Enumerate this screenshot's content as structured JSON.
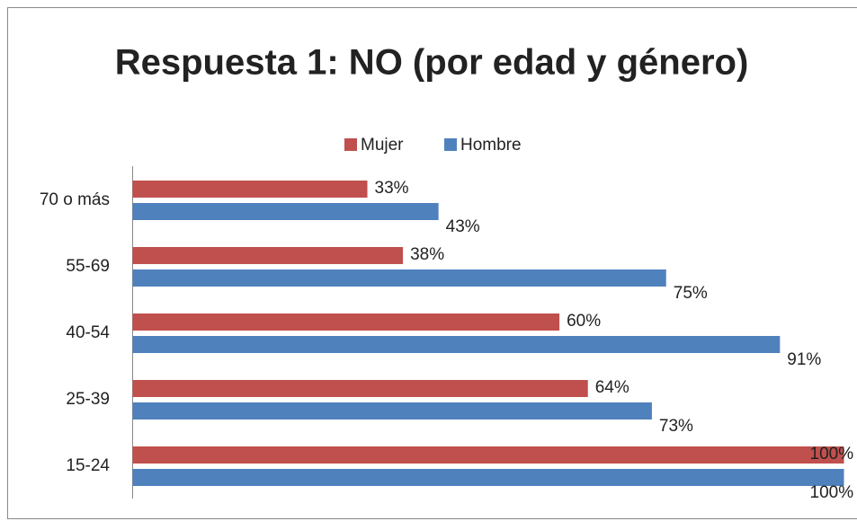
{
  "chart_data": {
    "type": "bar",
    "orientation": "horizontal",
    "title": "Respuesta 1: NO (por edad y género)",
    "categories": [
      "70 o más",
      "55-69",
      "40-54",
      "25-39",
      "15-24"
    ],
    "series": [
      {
        "name": "Mujer",
        "color": "#c0504d",
        "values": [
          33,
          38,
          60,
          64,
          100
        ],
        "value_labels": [
          "33%",
          "38%",
          "60%",
          "64%",
          "100%"
        ]
      },
      {
        "name": "Hombre",
        "color": "#4f81bd",
        "values": [
          43,
          75,
          91,
          73,
          100
        ],
        "value_labels": [
          "43%",
          "75%",
          "91%",
          "73%",
          "100%"
        ]
      }
    ],
    "legend": "top"
  }
}
